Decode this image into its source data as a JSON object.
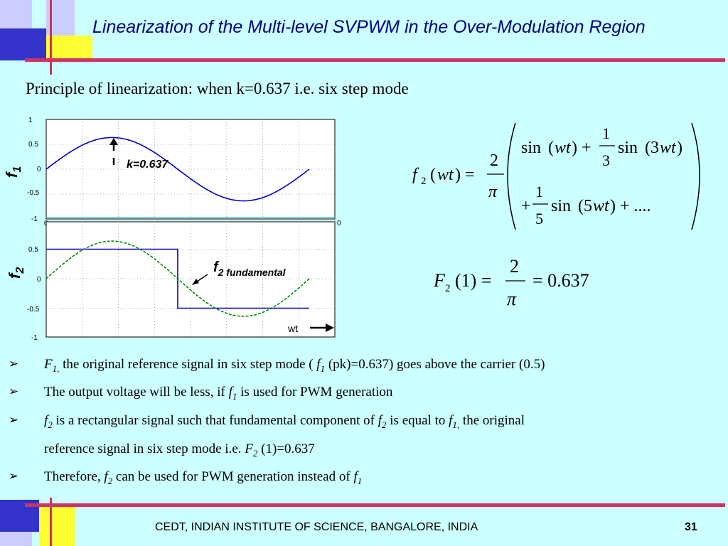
{
  "slide": {
    "title": "Linearization of the Multi-level SVPWM in the Over-Modulation Region",
    "subtitle": "Principle of linearization: when k=0.637 i.e. six step mode",
    "footer": "CEDT, INDIAN INSTITUTE OF SCIENCE, BANGALORE, INDIA",
    "page_number": "31"
  },
  "bullets": [
    {
      "pre": "",
      "var": "F",
      "sub": "1,",
      "post": " the original reference signal in six step mode (",
      "var2": "f",
      "sub2": "1",
      "post2": " (pk)=0.637) goes above the carrier (0.5)"
    },
    {
      "pre": "The output voltage will be less, if ",
      "var": "f",
      "sub": "1",
      "post": " is used for PWM generation"
    },
    {
      "pre": "",
      "var": "f",
      "sub": "2",
      "post": " is a rectangular signal such that fundamental component of ",
      "var2": "f",
      "sub2": "2",
      "post2": " is equal to ",
      "var3": "f",
      "sub3": "1,",
      "post3": " the original"
    },
    {
      "pre": "reference signal in six step mode i.e. ",
      "var": "F",
      "sub": "2",
      "post": " (1)=0.637"
    },
    {
      "pre": "Therefore, ",
      "var": "f",
      "sub": "2",
      "post": " can be used for PWM generation instead of ",
      "var2": "f",
      "sub2": "1",
      "post2": ""
    }
  ],
  "equations": {
    "f2_series": {
      "lhs": "f2(wt) =",
      "coef_num": "2",
      "coef_den": "π",
      "row1": "sin(wt) + (1/3) sin(3wt)",
      "row2": "+ (1/5) sin(5wt) + ...."
    },
    "F2_value": {
      "lhs": "F2(1) =",
      "num": "2",
      "den": "π",
      "rhs": "= 0.637"
    }
  },
  "chart_data": [
    {
      "type": "line",
      "ylabel": "f1",
      "annotation": "k=0.637",
      "ylim": [
        -1,
        1
      ],
      "yticks": [
        "1",
        "0.5",
        "0",
        "-0.5",
        "-1"
      ],
      "series": [
        {
          "values": [
            0,
            0.637,
            0,
            -0.637,
            0
          ],
          "x": [
            0,
            90,
            180,
            270,
            360
          ],
          "color": "#0000cc"
        }
      ]
    },
    {
      "type": "line",
      "ylabel": "f2",
      "annotation": "f2 fundamental",
      "xlabel": "wt",
      "ylim": [
        -1,
        1
      ],
      "yticks": [
        "0.5",
        "0",
        "-0.5",
        "-1"
      ],
      "series": [
        {
          "values": [
            0.5,
            0.5,
            -0.5,
            -0.5
          ],
          "x": [
            0,
            180,
            180,
            360
          ],
          "color": "#0000cc"
        },
        {
          "values": [
            0,
            0.637,
            0,
            -0.637,
            0
          ],
          "x": [
            0,
            90,
            180,
            270,
            360
          ],
          "color": "#008800"
        }
      ]
    }
  ],
  "labels": {
    "f1_label": "f",
    "f1_sub": "1",
    "f2_label": "f",
    "f2_sub": "2",
    "k_label": "k=0.637",
    "f2_fund_main": "f",
    "f2_fund_sub": "2 fundamental",
    "wt_label": "wt",
    "axis_tick_left_bottom": "0",
    "axis_tick_right_bottom": "0"
  }
}
